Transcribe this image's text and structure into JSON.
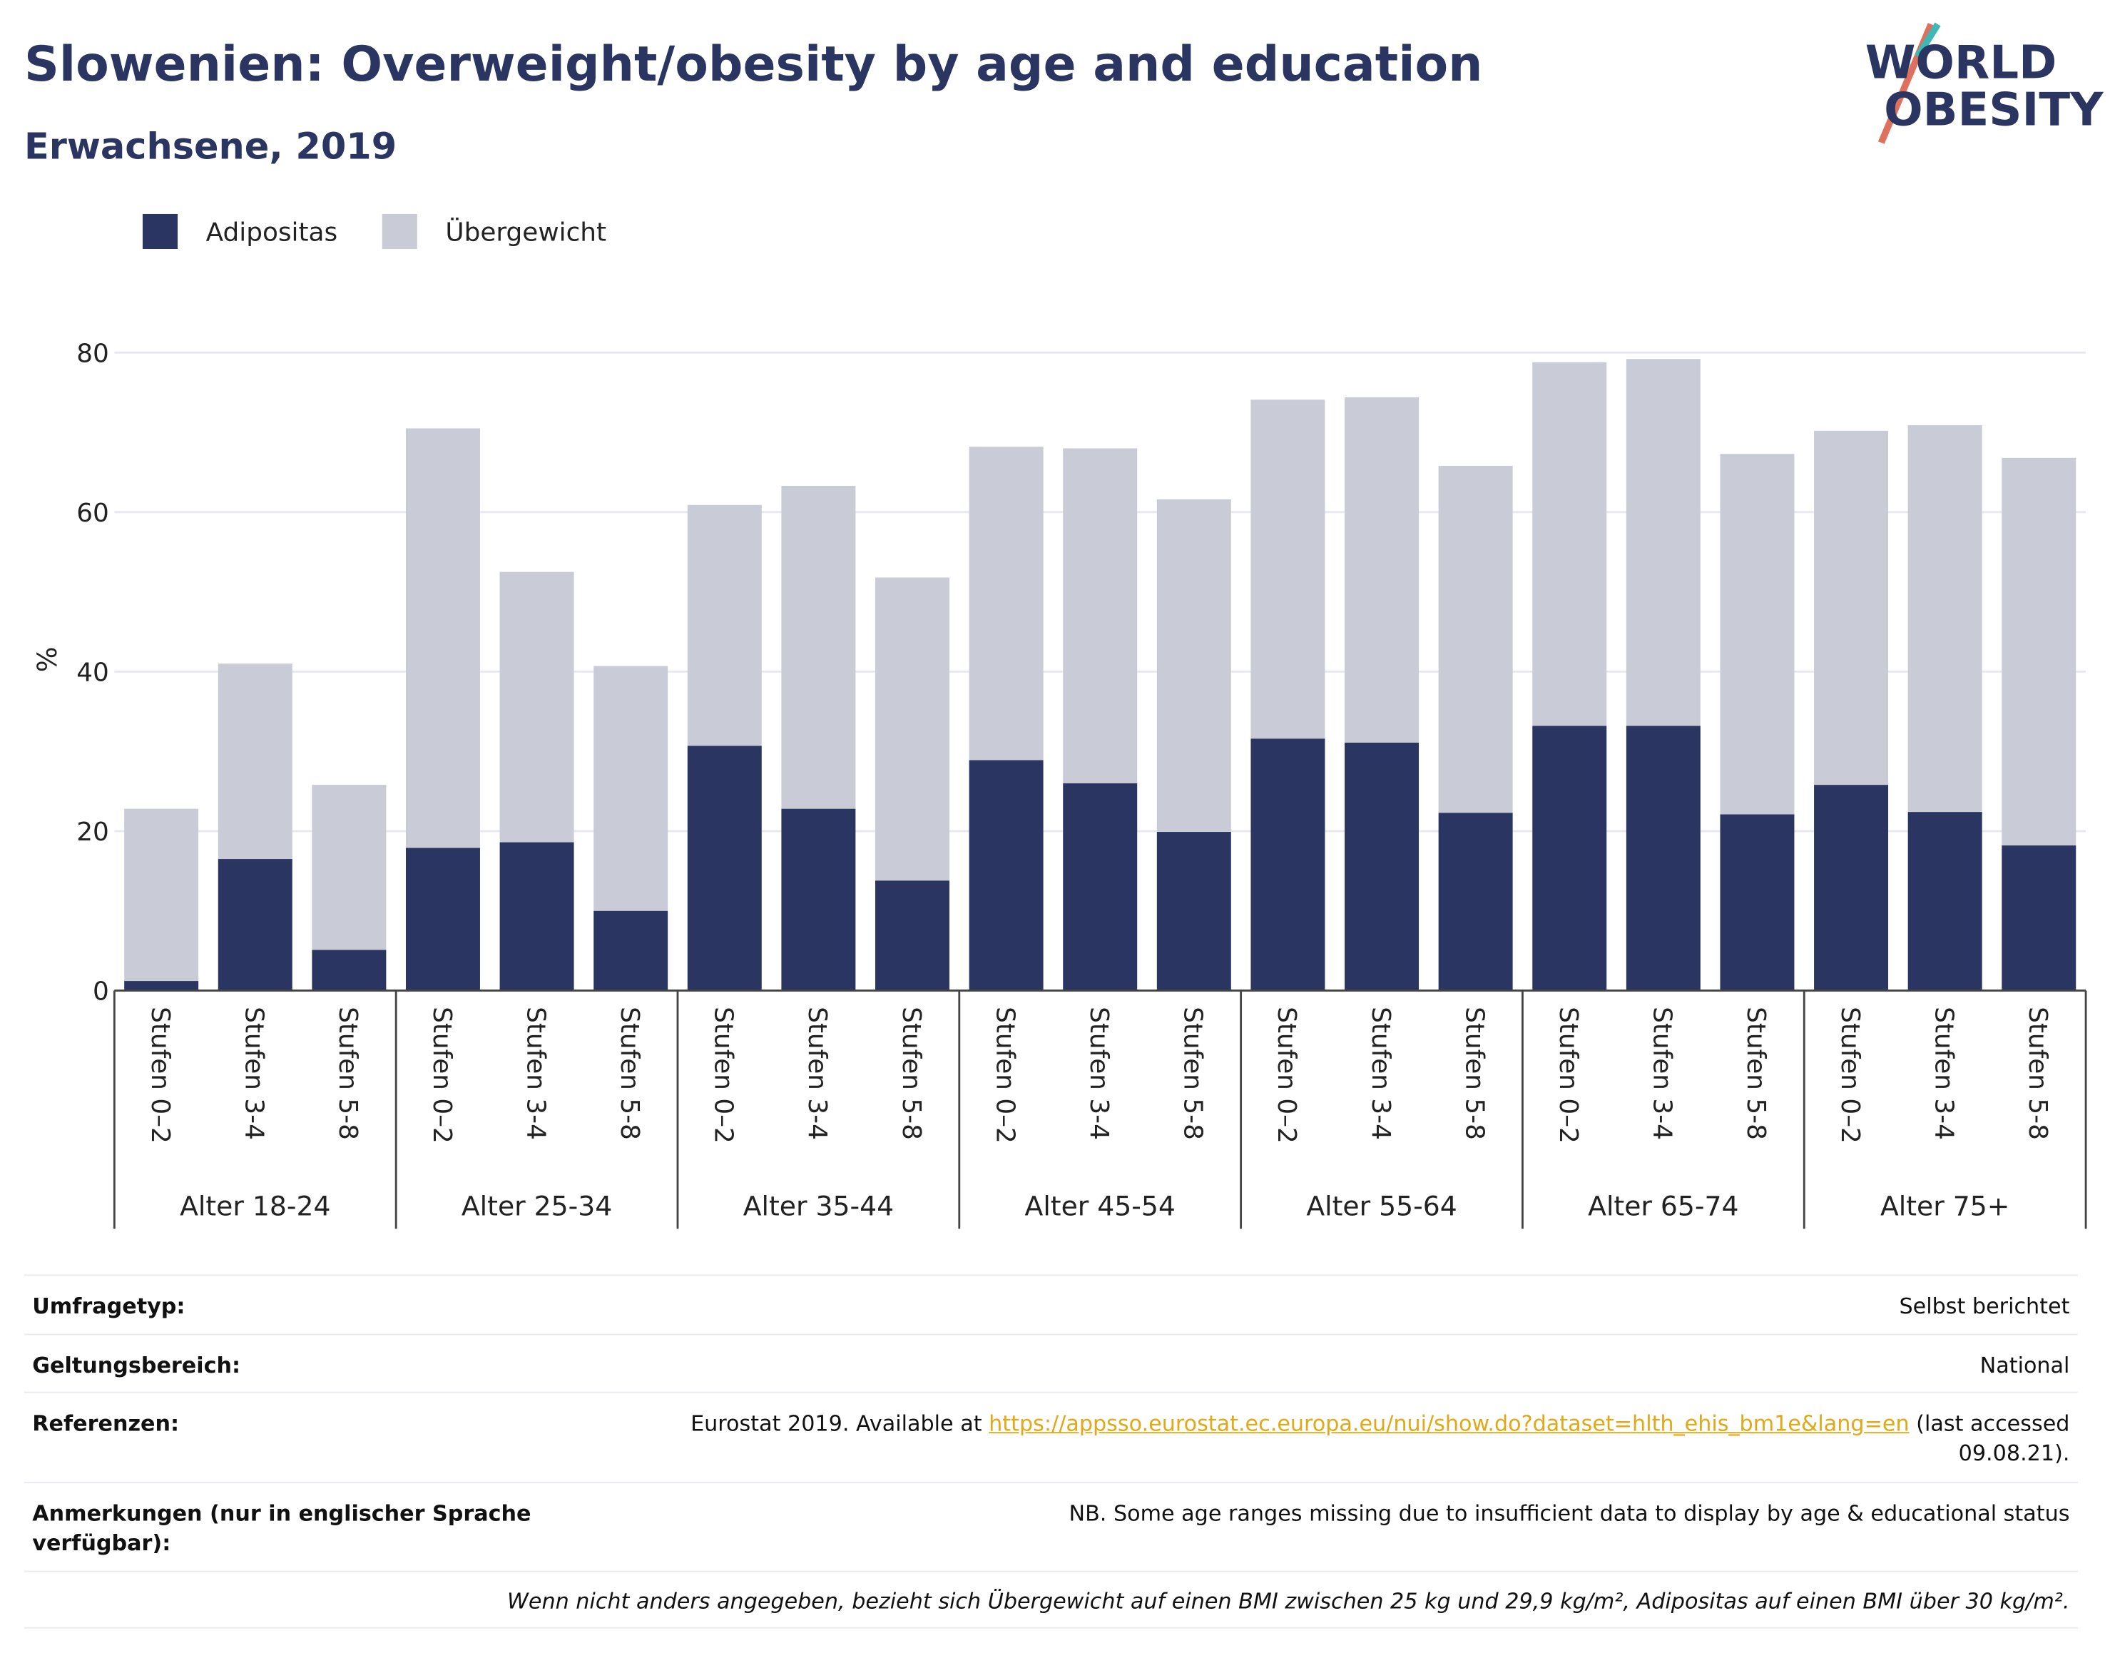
{
  "chart_data": {
    "type": "bar",
    "stacked": true,
    "title": "Slowenien: Overweight/obesity by age and education",
    "subtitle": "Erwachsene, 2019",
    "y_label": "%",
    "logo": [
      "WORLD",
      "OBESITY"
    ],
    "categories": [
      "Stufen 0–2",
      "Stufen 3-4",
      "Stufen 5-8",
      "Stufen 0–2",
      "Stufen 3-4",
      "Stufen 5-8",
      "Stufen 0–2",
      "Stufen 3-4",
      "Stufen 5-8",
      "Stufen 0–2",
      "Stufen 3-4",
      "Stufen 5-8",
      "Stufen 0–2",
      "Stufen 3-4",
      "Stufen 5-8",
      "Stufen 0–2",
      "Stufen 3-4",
      "Stufen 5-8",
      "Stufen 0–2",
      "Stufen 3-4",
      "Stufen 5-8"
    ],
    "groups": [
      "Alter 18-24",
      "Alter 25-34",
      "Alter 35-44",
      "Alter 45-54",
      "Alter 55-64",
      "Alter 65-74",
      "Alter 75+"
    ],
    "series": [
      {
        "name": "Adipositas",
        "color": "#2a3561",
        "values": [
          1.2,
          16.5,
          5.1,
          17.9,
          18.6,
          10.0,
          30.7,
          22.8,
          13.8,
          28.9,
          26.0,
          19.9,
          31.6,
          31.1,
          22.3,
          33.2,
          33.2,
          22.1,
          25.8,
          22.4,
          18.2
        ]
      },
      {
        "name": "Übergewicht",
        "color": "#c9cbd6",
        "values": [
          21.6,
          24.5,
          20.7,
          52.6,
          33.9,
          30.7,
          30.2,
          40.5,
          38.0,
          39.3,
          42.0,
          41.7,
          42.5,
          43.3,
          43.5,
          45.6,
          46.0,
          45.2,
          44.4,
          48.5,
          48.6
        ]
      }
    ],
    "ylim": [
      0,
      80
    ],
    "yticks": [
      0,
      20,
      40,
      60,
      80
    ],
    "grid": true,
    "legend": "top-left"
  },
  "footer": {
    "rows": [
      {
        "label": "Umfragetyp:",
        "value": "Selbst berichtet"
      },
      {
        "label": "Geltungsbereich:",
        "value": "National"
      },
      {
        "label": "Referenzen:",
        "value": "Eurostat 2019. Available at ",
        "link": "https://appsso.eurostat.ec.europa.eu/nui/show.do?dataset=hlth_ehis_bm1e&lang=en",
        "value_end": " (last accessed 09.08.21)."
      },
      {
        "label": "Anmerkungen (nur in englischer Sprache verfügbar):",
        "value": "NB. Some age ranges missing due to insufficient data to display by age & educational status"
      }
    ],
    "note": "Wenn nicht anders angegeben, bezieht sich Übergewicht auf einen BMI zwischen 25 kg und 29,9 kg/m², Adipositas auf einen BMI über 30 kg/m²."
  }
}
